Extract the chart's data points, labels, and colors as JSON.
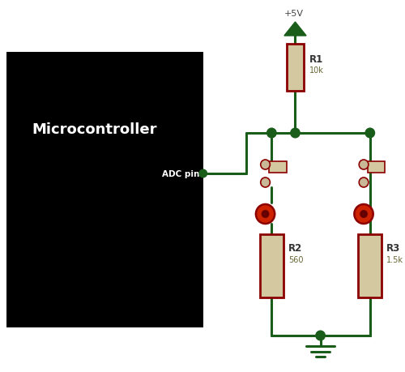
{
  "bg_color": "#000000",
  "wire_color": "#1a5c1a",
  "resistor_body": "#d4c8a0",
  "resistor_border": "#8b0000",
  "node_color": "#1a5c1a",
  "led_outer": "#cc2200",
  "led_inner": "#660000",
  "terminal_fill": "#c8b898",
  "text_white": "#ffffff",
  "text_dark": "#333333",
  "text_olive": "#666633",
  "text_power": "#444444",
  "mc_label": "Microcontroller",
  "mc_label_fontsize": 13,
  "adc_label": "ADC pin",
  "vcc_label": "+5V",
  "r1_label": "R1",
  "r1_val": "10k",
  "r2_label": "R2",
  "r2_val": "560",
  "r3_label": "R3",
  "r3_val": "1.5k",
  "figwidth": 5.0,
  "figheight": 4.6,
  "dpi": 100
}
